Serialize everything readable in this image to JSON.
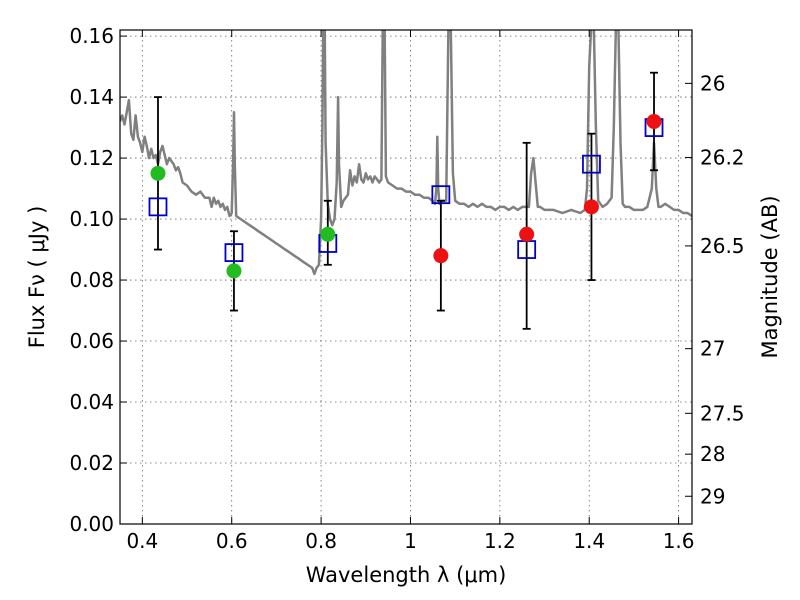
{
  "chart_data": {
    "type": "scatter",
    "title": "",
    "xlabel": "Wavelength  λ (μm)",
    "ylabel": "Flux  Fν  ( μJy )",
    "y2label": "Magnitude (AB)",
    "xlim": [
      0.35,
      1.63
    ],
    "ylim": [
      0.0,
      0.162
    ],
    "grid": true,
    "x_ticks": [
      0.4,
      0.6,
      0.8,
      1.0,
      1.2,
      1.4,
      1.6
    ],
    "x_tick_labels": [
      "0.4",
      "0.6",
      "0.8",
      "1",
      "1.2",
      "1.4",
      "1.6"
    ],
    "y_ticks": [
      0.0,
      0.02,
      0.04,
      0.06,
      0.08,
      0.1,
      0.12,
      0.14,
      0.16
    ],
    "y_tick_labels": [
      "0.00",
      "0.02",
      "0.04",
      "0.06",
      "0.08",
      "0.10",
      "0.12",
      "0.14",
      "0.16"
    ],
    "y2_ticks": [
      {
        "label": "26",
        "flux": 0.1445
      },
      {
        "label": "26.2",
        "flux": 0.1202
      },
      {
        "label": "26.5",
        "flux": 0.0912
      },
      {
        "label": "27",
        "flux": 0.0575
      },
      {
        "label": "27.5",
        "flux": 0.0363
      },
      {
        "label": "28",
        "flux": 0.0229
      },
      {
        "label": "29",
        "flux": 0.0091
      }
    ],
    "series": [
      {
        "type": "line",
        "color": "#808080",
        "points": [
          [
            0.35,
            0.132
          ],
          [
            0.355,
            0.134
          ],
          [
            0.36,
            0.131
          ],
          [
            0.365,
            0.135
          ],
          [
            0.37,
            0.139
          ],
          [
            0.375,
            0.128
          ],
          [
            0.38,
            0.126
          ],
          [
            0.385,
            0.134
          ],
          [
            0.39,
            0.127
          ],
          [
            0.395,
            0.125
          ],
          [
            0.4,
            0.122
          ],
          [
            0.405,
            0.127
          ],
          [
            0.41,
            0.124
          ],
          [
            0.415,
            0.12
          ],
          [
            0.42,
            0.123
          ],
          [
            0.425,
            0.12
          ],
          [
            0.43,
            0.121
          ],
          [
            0.435,
            0.118
          ],
          [
            0.44,
            0.122
          ],
          [
            0.445,
            0.124
          ],
          [
            0.45,
            0.121
          ],
          [
            0.455,
            0.118
          ],
          [
            0.46,
            0.12
          ],
          [
            0.465,
            0.119
          ],
          [
            0.47,
            0.118
          ],
          [
            0.475,
            0.116
          ],
          [
            0.48,
            0.117
          ],
          [
            0.485,
            0.115
          ],
          [
            0.49,
            0.112
          ],
          [
            0.5,
            0.111
          ],
          [
            0.51,
            0.109
          ],
          [
            0.52,
            0.108
          ],
          [
            0.53,
            0.109
          ],
          [
            0.54,
            0.107
          ],
          [
            0.55,
            0.107
          ],
          [
            0.555,
            0.104
          ],
          [
            0.56,
            0.107
          ],
          [
            0.565,
            0.105
          ],
          [
            0.57,
            0.106
          ],
          [
            0.575,
            0.104
          ],
          [
            0.58,
            0.105
          ],
          [
            0.585,
            0.103
          ],
          [
            0.59,
            0.104
          ],
          [
            0.595,
            0.101
          ],
          [
            0.6,
            0.102
          ],
          [
            0.603,
            0.118
          ],
          [
            0.605,
            0.135
          ],
          [
            0.607,
            0.118
          ],
          [
            0.61,
            0.101
          ],
          [
            0.62,
            0.1
          ],
          [
            0.63,
            0.099
          ],
          [
            0.64,
            0.098
          ],
          [
            0.65,
            0.097
          ],
          [
            0.66,
            0.096
          ],
          [
            0.67,
            0.095
          ],
          [
            0.68,
            0.094
          ],
          [
            0.69,
            0.093
          ],
          [
            0.7,
            0.092
          ],
          [
            0.71,
            0.091
          ],
          [
            0.72,
            0.09
          ],
          [
            0.73,
            0.089
          ],
          [
            0.74,
            0.088
          ],
          [
            0.75,
            0.087
          ],
          [
            0.76,
            0.086
          ],
          [
            0.77,
            0.085
          ],
          [
            0.78,
            0.084
          ],
          [
            0.785,
            0.082
          ],
          [
            0.79,
            0.084
          ],
          [
            0.795,
            0.085
          ],
          [
            0.8,
            0.1
          ],
          [
            0.803,
            0.13
          ],
          [
            0.805,
            0.165
          ],
          [
            0.808,
            0.165
          ],
          [
            0.81,
            0.125
          ],
          [
            0.815,
            0.105
          ],
          [
            0.82,
            0.1
          ],
          [
            0.825,
            0.098
          ],
          [
            0.83,
            0.1
          ],
          [
            0.835,
            0.112
          ],
          [
            0.838,
            0.14
          ],
          [
            0.84,
            0.118
          ],
          [
            0.845,
            0.104
          ],
          [
            0.85,
            0.106
          ],
          [
            0.86,
            0.108
          ],
          [
            0.865,
            0.116
          ],
          [
            0.87,
            0.111
          ],
          [
            0.875,
            0.114
          ],
          [
            0.88,
            0.112
          ],
          [
            0.885,
            0.118
          ],
          [
            0.89,
            0.113
          ],
          [
            0.895,
            0.112
          ],
          [
            0.9,
            0.115
          ],
          [
            0.905,
            0.113
          ],
          [
            0.91,
            0.114
          ],
          [
            0.915,
            0.112
          ],
          [
            0.92,
            0.114
          ],
          [
            0.925,
            0.113
          ],
          [
            0.93,
            0.112
          ],
          [
            0.935,
            0.113
          ],
          [
            0.938,
            0.165
          ],
          [
            0.942,
            0.165
          ],
          [
            0.945,
            0.114
          ],
          [
            0.95,
            0.112
          ],
          [
            0.96,
            0.111
          ],
          [
            0.97,
            0.11
          ],
          [
            0.98,
            0.11
          ],
          [
            0.99,
            0.109
          ],
          [
            1.0,
            0.109
          ],
          [
            1.01,
            0.108
          ],
          [
            1.02,
            0.108
          ],
          [
            1.03,
            0.107
          ],
          [
            1.04,
            0.107
          ],
          [
            1.05,
            0.106
          ],
          [
            1.055,
            0.105
          ],
          [
            1.058,
            0.11
          ],
          [
            1.06,
            0.127
          ],
          [
            1.062,
            0.11
          ],
          [
            1.065,
            0.105
          ],
          [
            1.07,
            0.106
          ],
          [
            1.075,
            0.106
          ],
          [
            1.08,
            0.106
          ],
          [
            1.085,
            0.165
          ],
          [
            1.09,
            0.165
          ],
          [
            1.095,
            0.115
          ],
          [
            1.1,
            0.106
          ],
          [
            1.11,
            0.105
          ],
          [
            1.12,
            0.105
          ],
          [
            1.13,
            0.104
          ],
          [
            1.14,
            0.105
          ],
          [
            1.15,
            0.104
          ],
          [
            1.16,
            0.105
          ],
          [
            1.17,
            0.104
          ],
          [
            1.18,
            0.104
          ],
          [
            1.19,
            0.103
          ],
          [
            1.2,
            0.104
          ],
          [
            1.21,
            0.104
          ],
          [
            1.22,
            0.103
          ],
          [
            1.23,
            0.104
          ],
          [
            1.24,
            0.103
          ],
          [
            1.25,
            0.104
          ],
          [
            1.26,
            0.104
          ],
          [
            1.265,
            0.104
          ],
          [
            1.27,
            0.115
          ],
          [
            1.275,
            0.12
          ],
          [
            1.28,
            0.112
          ],
          [
            1.285,
            0.104
          ],
          [
            1.29,
            0.104
          ],
          [
            1.3,
            0.103
          ],
          [
            1.32,
            0.103
          ],
          [
            1.34,
            0.102
          ],
          [
            1.36,
            0.103
          ],
          [
            1.38,
            0.102
          ],
          [
            1.39,
            0.103
          ],
          [
            1.395,
            0.11
          ],
          [
            1.4,
            0.15
          ],
          [
            1.405,
            0.165
          ],
          [
            1.41,
            0.165
          ],
          [
            1.415,
            0.13
          ],
          [
            1.42,
            0.106
          ],
          [
            1.43,
            0.104
          ],
          [
            1.44,
            0.105
          ],
          [
            1.45,
            0.107
          ],
          [
            1.455,
            0.13
          ],
          [
            1.46,
            0.165
          ],
          [
            1.465,
            0.165
          ],
          [
            1.47,
            0.125
          ],
          [
            1.475,
            0.105
          ],
          [
            1.48,
            0.104
          ],
          [
            1.49,
            0.104
          ],
          [
            1.5,
            0.103
          ],
          [
            1.51,
            0.103
          ],
          [
            1.52,
            0.103
          ],
          [
            1.53,
            0.104
          ],
          [
            1.54,
            0.11
          ],
          [
            1.545,
            0.125
          ],
          [
            1.55,
            0.11
          ],
          [
            1.555,
            0.104
          ],
          [
            1.56,
            0.104
          ],
          [
            1.57,
            0.105
          ],
          [
            1.58,
            0.104
          ],
          [
            1.59,
            0.103
          ],
          [
            1.6,
            0.103
          ],
          [
            1.61,
            0.102
          ],
          [
            1.62,
            0.102
          ],
          [
            1.63,
            0.101
          ]
        ]
      },
      {
        "type": "errorbar",
        "color": "#000000",
        "points": [
          {
            "x": 0.435,
            "ylow": 0.09,
            "yhigh": 0.14
          },
          {
            "x": 0.605,
            "ylow": 0.07,
            "yhigh": 0.096
          },
          {
            "x": 0.815,
            "ylow": 0.085,
            "yhigh": 0.106
          },
          {
            "x": 1.068,
            "ylow": 0.07,
            "yhigh": 0.106
          },
          {
            "x": 1.26,
            "ylow": 0.064,
            "yhigh": 0.125
          },
          {
            "x": 1.405,
            "ylow": 0.08,
            "yhigh": 0.128
          },
          {
            "x": 1.545,
            "ylow": 0.116,
            "yhigh": 0.148
          }
        ]
      },
      {
        "type": "scatter",
        "marker": "square",
        "color": "#0000cc",
        "points": [
          {
            "x": 0.435,
            "y": 0.104
          },
          {
            "x": 0.605,
            "y": 0.089
          },
          {
            "x": 0.815,
            "y": 0.092
          },
          {
            "x": 1.068,
            "y": 0.108
          },
          {
            "x": 1.26,
            "y": 0.09
          },
          {
            "x": 1.405,
            "y": 0.118
          },
          {
            "x": 1.545,
            "y": 0.13
          }
        ]
      },
      {
        "type": "scatter",
        "marker": "circle",
        "color": "#22bb22",
        "points": [
          {
            "x": 0.435,
            "y": 0.115
          },
          {
            "x": 0.605,
            "y": 0.083
          },
          {
            "x": 0.815,
            "y": 0.095
          }
        ]
      },
      {
        "type": "scatter",
        "marker": "circle",
        "color": "#ee1111",
        "points": [
          {
            "x": 1.068,
            "y": 0.088
          },
          {
            "x": 1.26,
            "y": 0.095
          },
          {
            "x": 1.405,
            "y": 0.104
          },
          {
            "x": 1.545,
            "y": 0.132
          }
        ]
      }
    ]
  }
}
